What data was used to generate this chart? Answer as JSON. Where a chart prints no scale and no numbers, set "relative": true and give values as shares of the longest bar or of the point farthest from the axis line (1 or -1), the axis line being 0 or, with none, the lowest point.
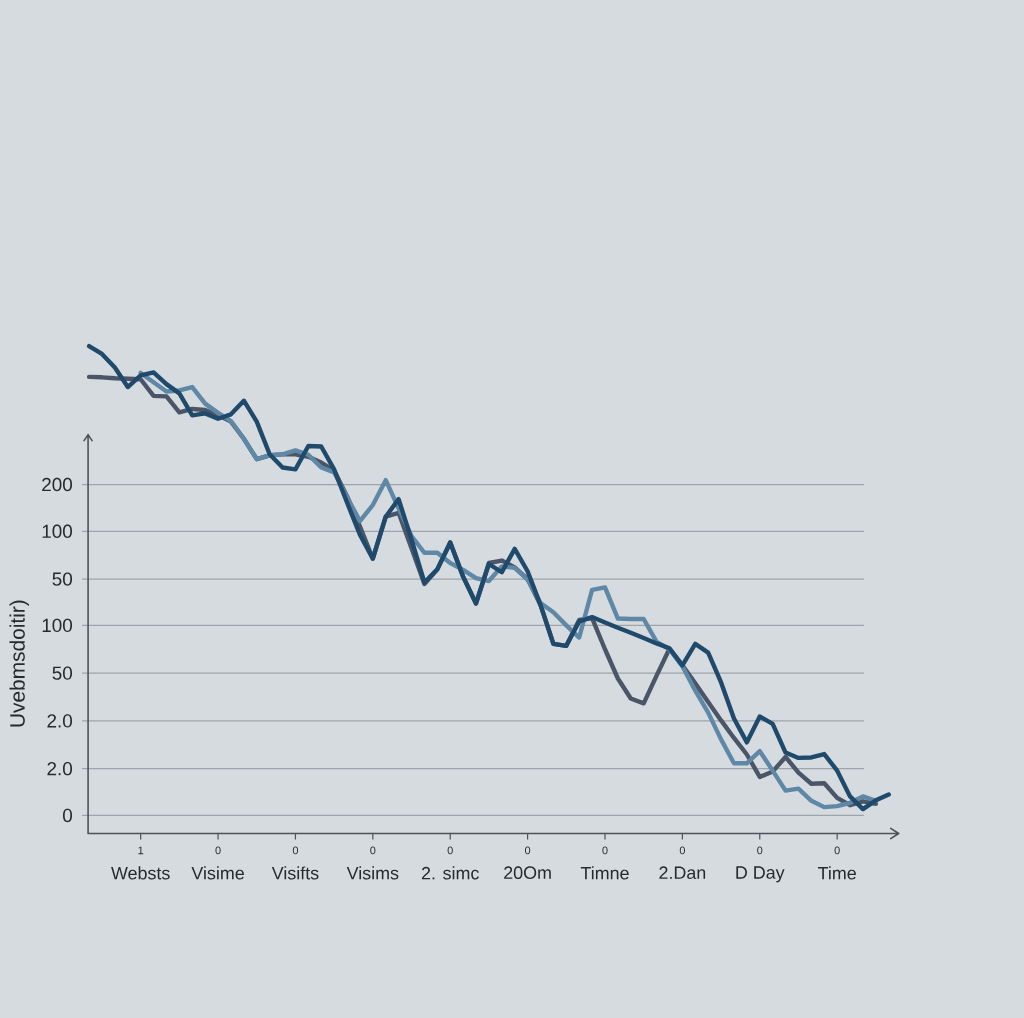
{
  "chart_data": {
    "type": "line",
    "relative": true,
    "ylabel": "Uvebmsdoitir)",
    "categories": [
      null,
      null,
      null,
      null,
      "Websts",
      null,
      null,
      null,
      null,
      null,
      "Visime",
      null,
      null,
      null,
      null,
      null,
      "Visifts",
      null,
      null,
      null,
      null,
      null,
      "Visims",
      null,
      null,
      null,
      null,
      null,
      "2. simc",
      null,
      null,
      null,
      null,
      null,
      "20Om",
      null,
      null,
      null,
      null,
      null,
      "Timne",
      null,
      null,
      null,
      null,
      null,
      "2.Dan",
      null,
      null,
      null,
      null,
      null,
      "D Day",
      null,
      null,
      null,
      null,
      null,
      "Time",
      null,
      null,
      null,
      null
    ],
    "annotations": [
      "200",
      "100",
      "50",
      "100",
      "50",
      "2.0",
      "2.0",
      "0",
      "1",
      "0",
      "0",
      "0",
      "0",
      "0",
      "0",
      "0",
      "0",
      "0"
    ],
    "ref_lines": [
      {
        "axis": "y",
        "value": 0.716
      },
      {
        "axis": "y",
        "value": 0.62
      },
      {
        "axis": "y",
        "value": 0.522
      },
      {
        "axis": "y",
        "value": 0.427
      },
      {
        "axis": "y",
        "value": 0.329
      },
      {
        "axis": "y",
        "value": 0.231
      },
      {
        "axis": "y",
        "value": 0.133
      },
      {
        "axis": "y",
        "value": 0.037
      }
    ],
    "series": [
      {
        "color": "#4a5568",
        "values": [
          0.937,
          0.936,
          0.934,
          0.933,
          0.932,
          0.898,
          0.897,
          0.864,
          0.871,
          0.869,
          0.858,
          0.845,
          0.81,
          0.768,
          0.776,
          0.778,
          0.778,
          0.773,
          0.761,
          0.745,
          0.692,
          0.63,
          0.564,
          0.65,
          0.658,
          0.585,
          0.512,
          0.542,
          0.597,
          0.527,
          0.472,
          0.555,
          0.56,
          0.546,
          0.522,
          0.469,
          0.389,
          0.385,
          0.438,
          0.442,
          0.378,
          0.318,
          0.277,
          0.267,
          0.324,
          0.379,
          0.345,
          0.308,
          0.27,
          0.232,
          0.196,
          0.162,
          0.116,
          0.127,
          0.157,
          0.125,
          0.102,
          0.103,
          0.073,
          0.058,
          0.066,
          0.061,
          null
        ]
      },
      {
        "color": "#5f87a6",
        "values": [
          null,
          null,
          null,
          null,
          0.945,
          0.926,
          0.907,
          0.909,
          0.916,
          0.882,
          0.863,
          0.846,
          0.81,
          0.768,
          0.776,
          0.778,
          0.786,
          0.777,
          0.751,
          0.741,
          0.69,
          0.641,
          0.674,
          0.725,
          0.667,
          0.61,
          0.576,
          0.576,
          0.555,
          0.541,
          0.524,
          0.518,
          0.548,
          0.545,
          0.521,
          0.473,
          0.454,
          0.427,
          0.402,
          0.5,
          0.505,
          0.441,
          0.44,
          0.44,
          0.393,
          0.378,
          0.343,
          0.293,
          0.248,
          0.193,
          0.144,
          0.144,
          0.169,
          0.129,
          0.088,
          0.092,
          0.067,
          0.054,
          0.056,
          0.063,
          0.076,
          0.067,
          null
        ]
      },
      {
        "color": "#1f4a6b",
        "values": [
          1.0,
          0.984,
          0.956,
          0.916,
          0.94,
          0.946,
          0.922,
          0.903,
          0.858,
          0.862,
          0.851,
          0.86,
          0.888,
          0.845,
          0.778,
          0.751,
          0.747,
          0.795,
          0.794,
          0.747,
          0.679,
          0.613,
          0.564,
          0.65,
          0.686,
          0.603,
          0.515,
          0.542,
          0.597,
          0.527,
          0.472,
          0.553,
          0.536,
          0.584,
          0.538,
          0.469,
          0.389,
          0.385,
          0.435,
          0.444,
          0.433,
          0.422,
          0.412,
          0.401,
          0.39,
          0.38,
          0.345,
          0.389,
          0.371,
          0.31,
          0.236,
          0.187,
          0.24,
          0.225,
          0.166,
          0.155,
          0.156,
          0.163,
          0.129,
          0.076,
          0.05,
          0.068,
          0.08
        ]
      }
    ]
  }
}
